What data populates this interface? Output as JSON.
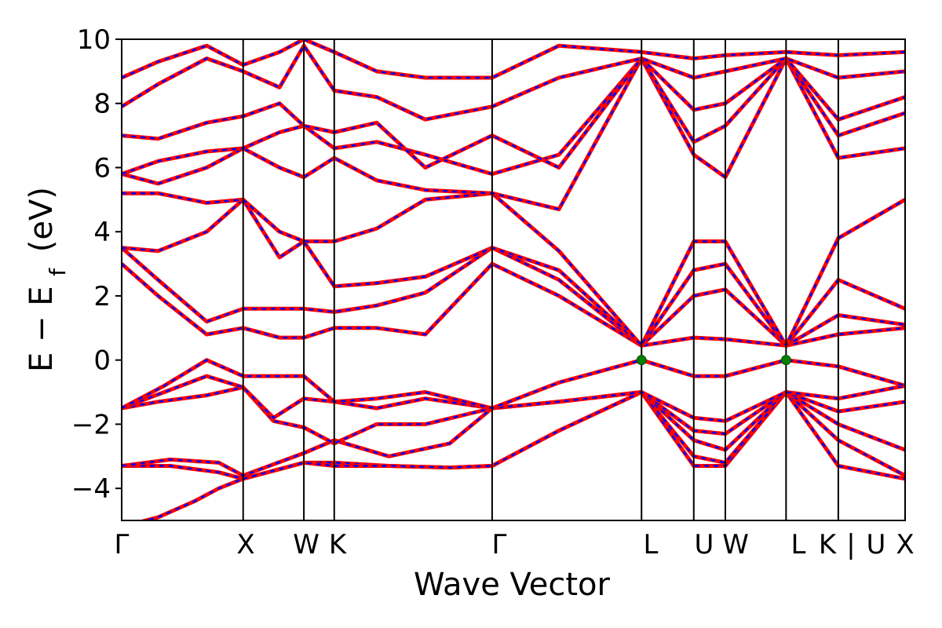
{
  "chart_data": {
    "type": "line",
    "title": "",
    "xlabel": "Wave Vector",
    "ylabel": "E − E",
    "ylabel_subscript": "f",
    "ylabel_unit": "(eV)",
    "ylim": [
      -5,
      10
    ],
    "yticks": [
      -4,
      -2,
      0,
      2,
      4,
      6,
      8,
      10
    ],
    "ytick_labels": [
      "−4",
      "−2",
      "0",
      "2",
      "4",
      "6",
      "8",
      "10"
    ],
    "xlim": [
      0,
      6.45
    ],
    "high_symmetry_points": [
      {
        "label": "Γ",
        "x": 0.0
      },
      {
        "label": "X",
        "x": 1.0
      },
      {
        "label": "W",
        "x": 1.5
      },
      {
        "label": "K",
        "x": 1.75
      },
      {
        "label": "Γ",
        "x": 3.05
      },
      {
        "label": "L",
        "x": 4.28
      },
      {
        "label": "U",
        "x": 4.71
      },
      {
        "label": "W",
        "x": 4.97
      },
      {
        "label": "L",
        "x": 5.47
      },
      {
        "label": "K",
        "x": 5.9
      },
      {
        "label": "|",
        "x": 5.9
      },
      {
        "label": "U",
        "x": 5.9
      },
      {
        "label": "X",
        "x": 6.45
      }
    ],
    "tick_label_text": [
      "Γ",
      "X",
      "W",
      "K",
      "Γ",
      "L",
      "U",
      "W",
      "L",
      "K",
      "|",
      "U",
      "X"
    ],
    "series_style": [
      {
        "color": "#ff0000",
        "style": "solid"
      },
      {
        "color": "#0000ff",
        "style": "dashed"
      }
    ],
    "band_edge_markers": [
      {
        "x": 4.28,
        "y": 0.0,
        "color": "#008000"
      },
      {
        "x": 5.47,
        "y": 0.0,
        "color": "#008000"
      }
    ],
    "bands": [
      {
        "x": [
          0,
          0.3,
          0.6,
          0.8,
          1.0,
          1.5,
          1.75,
          2.2,
          2.7,
          3.05,
          3.6,
          4.28,
          4.71,
          4.97,
          5.47,
          5.9,
          6.45
        ],
        "y": [
          -5.2,
          -4.9,
          -4.4,
          -4.0,
          -3.7,
          -3.2,
          -3.2,
          -3.3,
          -3.35,
          -3.3,
          -2.2,
          -1.0,
          -3.3,
          -3.3,
          -1.0,
          -3.3,
          -3.7
        ]
      },
      {
        "x": [
          0,
          0.4,
          0.8,
          1.0,
          1.5,
          1.75,
          2.2,
          2.7,
          3.05,
          3.6,
          4.28,
          4.71,
          4.97,
          5.47,
          5.9,
          6.45
        ],
        "y": [
          -3.3,
          -3.3,
          -3.5,
          -3.7,
          -3.2,
          -3.3,
          -3.3,
          -3.35,
          -3.3,
          -2.2,
          -1.0,
          -3.0,
          -3.2,
          -1.0,
          -2.5,
          -3.6
        ]
      },
      {
        "x": [
          0,
          0.4,
          0.8,
          1.0,
          1.5,
          1.75,
          2.2,
          2.7,
          3.05,
          3.6,
          4.28,
          4.71,
          4.97,
          5.47,
          5.9,
          6.45
        ],
        "y": [
          -3.3,
          -3.1,
          -3.2,
          -3.6,
          -2.9,
          -2.5,
          -3.0,
          -2.6,
          -1.5,
          -1.3,
          -1.0,
          -2.5,
          -2.8,
          -1.0,
          -2.0,
          -2.8
        ]
      },
      {
        "x": [
          0,
          0.3,
          0.7,
          1.0,
          1.25,
          1.5,
          1.75,
          2.1,
          2.5,
          3.05,
          3.6,
          4.28,
          4.71,
          4.97,
          5.47,
          5.9,
          6.45
        ],
        "y": [
          -1.5,
          -1.3,
          -1.1,
          -0.85,
          -1.9,
          -2.1,
          -2.6,
          -2.0,
          -2.0,
          -1.5,
          -1.3,
          -1.0,
          -2.2,
          -2.3,
          -1.0,
          -1.6,
          -1.3
        ]
      },
      {
        "x": [
          0,
          0.35,
          0.7,
          1.0,
          1.25,
          1.5,
          1.75,
          2.1,
          2.5,
          3.05,
          3.6,
          4.28,
          4.71,
          4.97,
          5.47,
          5.9,
          6.45
        ],
        "y": [
          -1.5,
          -1.0,
          -0.5,
          -0.85,
          -1.8,
          -1.2,
          -1.3,
          -1.5,
          -1.2,
          -1.5,
          -1.3,
          -1.0,
          -1.8,
          -1.9,
          -1.0,
          -1.2,
          -0.8
        ]
      },
      {
        "x": [
          0,
          0.35,
          0.7,
          1.0,
          1.3,
          1.5,
          1.75,
          2.1,
          2.5,
          3.05,
          3.6,
          4.28,
          4.71,
          4.97,
          5.47,
          5.9,
          6.45
        ],
        "y": [
          -1.5,
          -0.8,
          0.0,
          -0.5,
          -0.5,
          -0.5,
          -1.3,
          -1.2,
          -1.0,
          -1.5,
          -0.7,
          0.0,
          -0.5,
          -0.5,
          0.0,
          -0.2,
          -0.8
        ]
      },
      {
        "x": [
          0,
          0.3,
          0.7,
          1.0,
          1.3,
          1.5,
          1.75,
          2.1,
          2.5,
          3.05,
          3.6,
          4.28,
          4.71,
          4.97,
          5.47,
          5.9,
          6.45
        ],
        "y": [
          3.0,
          2.0,
          0.8,
          1.0,
          0.7,
          0.7,
          1.0,
          1.0,
          0.8,
          3.0,
          2.0,
          0.45,
          0.7,
          0.65,
          0.45,
          0.8,
          1.0
        ]
      },
      {
        "x": [
          0,
          0.3,
          0.7,
          1.0,
          1.3,
          1.5,
          1.75,
          2.1,
          2.5,
          3.05,
          3.6,
          4.28,
          4.71,
          4.97,
          5.47,
          5.9,
          6.45
        ],
        "y": [
          3.5,
          2.5,
          1.2,
          1.6,
          1.6,
          1.6,
          1.5,
          1.7,
          2.1,
          3.5,
          2.5,
          0.45,
          2.0,
          2.2,
          0.45,
          1.4,
          1.1
        ]
      },
      {
        "x": [
          0,
          0.3,
          0.7,
          1.0,
          1.3,
          1.5,
          1.75,
          2.1,
          2.5,
          3.05,
          3.6,
          4.28,
          4.71,
          4.97,
          5.47,
          5.9,
          6.45
        ],
        "y": [
          3.5,
          3.4,
          4.0,
          5.0,
          3.2,
          3.7,
          2.3,
          2.4,
          2.6,
          3.5,
          2.8,
          0.45,
          2.8,
          3.0,
          0.45,
          2.5,
          1.6
        ]
      },
      {
        "x": [
          0,
          0.3,
          0.7,
          1.0,
          1.3,
          1.5,
          1.75,
          2.1,
          2.5,
          3.05,
          3.6,
          4.28,
          4.71,
          4.97,
          5.47,
          5.9,
          6.45
        ],
        "y": [
          5.2,
          5.2,
          4.9,
          5.0,
          4.0,
          3.7,
          3.7,
          4.1,
          5.0,
          5.2,
          3.4,
          0.45,
          3.7,
          3.7,
          0.45,
          3.8,
          5.0
        ]
      },
      {
        "x": [
          0,
          0.3,
          0.7,
          1.0,
          1.3,
          1.5,
          1.75,
          2.1,
          2.5,
          3.05,
          3.6,
          4.28,
          4.71,
          4.97,
          5.47,
          5.9,
          6.45
        ],
        "y": [
          5.8,
          5.5,
          6.0,
          6.6,
          6.0,
          5.7,
          6.3,
          5.6,
          5.3,
          5.2,
          4.7,
          9.4,
          6.4,
          5.7,
          9.4,
          6.3,
          6.6
        ]
      },
      {
        "x": [
          0,
          0.3,
          0.7,
          1.0,
          1.3,
          1.5,
          1.75,
          2.1,
          2.5,
          3.05,
          3.6,
          4.28,
          4.71,
          4.97,
          5.47,
          5.9,
          6.45
        ],
        "y": [
          5.8,
          6.2,
          6.5,
          6.6,
          7.1,
          7.3,
          6.6,
          6.8,
          6.4,
          5.8,
          6.4,
          9.4,
          6.8,
          7.3,
          9.4,
          7.0,
          7.7
        ]
      },
      {
        "x": [
          0,
          0.3,
          0.7,
          1.0,
          1.3,
          1.5,
          1.75,
          2.1,
          2.5,
          3.05,
          3.6,
          4.28,
          4.71,
          4.97,
          5.47,
          5.9,
          6.45
        ],
        "y": [
          7.0,
          6.9,
          7.4,
          7.6,
          8.0,
          7.3,
          7.1,
          7.4,
          6.0,
          7.0,
          6.0,
          9.4,
          7.8,
          8.0,
          9.4,
          7.5,
          8.2
        ]
      },
      {
        "x": [
          0,
          0.3,
          0.7,
          1.0,
          1.3,
          1.5,
          1.75,
          2.1,
          2.5,
          3.05,
          3.6,
          4.28,
          4.71,
          4.97,
          5.47,
          5.9,
          6.45
        ],
        "y": [
          7.9,
          8.6,
          9.4,
          9.0,
          8.5,
          9.8,
          8.4,
          8.2,
          7.5,
          7.9,
          8.8,
          9.4,
          8.8,
          9.0,
          9.4,
          8.8,
          9.0
        ]
      },
      {
        "x": [
          0,
          0.3,
          0.7,
          1.0,
          1.3,
          1.5,
          1.75,
          2.1,
          2.5,
          3.05,
          3.6,
          4.28,
          4.71,
          4.97,
          5.47,
          5.9,
          6.45
        ],
        "y": [
          8.8,
          9.3,
          9.8,
          9.2,
          9.6,
          10.0,
          9.6,
          9.0,
          8.8,
          8.8,
          9.8,
          9.6,
          9.4,
          9.5,
          9.6,
          9.5,
          9.6
        ]
      }
    ]
  }
}
